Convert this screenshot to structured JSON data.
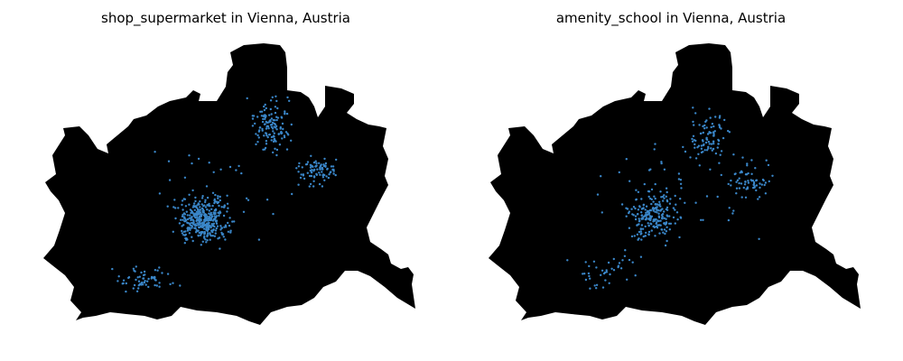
{
  "maps": [
    {
      "title": "shop_supermarket in Vienna, Austria",
      "point_color": "#3a86c8",
      "region_color": "#000000",
      "point_count_approx": 700,
      "density": "high, concentrated in center and north-east"
    },
    {
      "title": "amenity_school in Vienna, Austria",
      "point_color": "#3a86c8",
      "region_color": "#000000",
      "point_count_approx": 450,
      "density": "moderate, spread across city"
    }
  ]
}
